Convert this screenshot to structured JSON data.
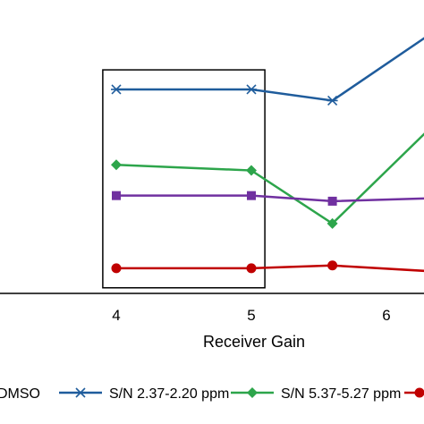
{
  "chart_data": {
    "type": "line",
    "xlabel": "Receiver Gain",
    "x_ticks": [
      "4",
      "5",
      "6"
    ],
    "x": [
      4,
      5,
      5.6,
      6.3
    ],
    "x_range": [
      3.15,
      6.3
    ],
    "y_range": [
      0,
      105
    ],
    "y_axis_visible": false,
    "grid": false,
    "legend_position": "bottom",
    "highlight_box": {
      "x_from": 3.9,
      "x_to": 5.1,
      "y_from": 2,
      "y_to": 80
    },
    "series": [
      {
        "name": "",
        "legend_label": "DMSO",
        "color": "#C00000",
        "marker": "circle",
        "values": [
          9,
          9,
          10,
          8
        ]
      },
      {
        "name": "S/N 2.37-2.20 ppm",
        "legend_label": "S/N 2.37-2.20 ppm",
        "color": "#1F5C9C",
        "marker": "asterisk",
        "values": [
          73,
          73,
          69,
          92
        ]
      },
      {
        "name": "S/N 5.37-5.27 ppm",
        "legend_label": "S/N 5.37-5.27 ppm",
        "color": "#2DA54B",
        "marker": "diamond",
        "values": [
          46,
          44,
          25,
          58
        ]
      },
      {
        "name": "",
        "legend_label": "",
        "color": "#7030A0",
        "marker": "square",
        "values": [
          35,
          35,
          33,
          34
        ]
      }
    ]
  }
}
